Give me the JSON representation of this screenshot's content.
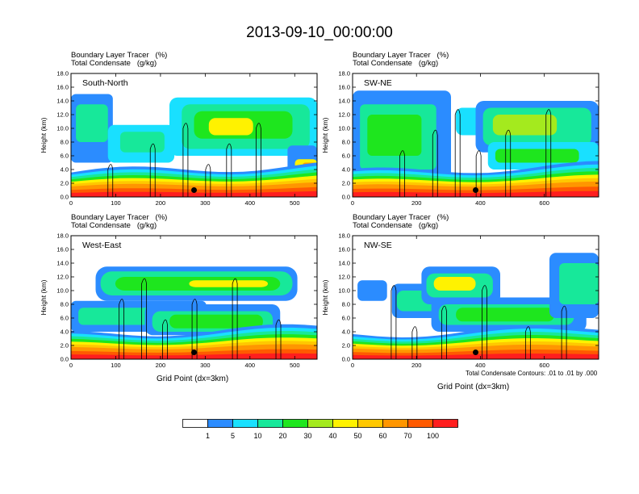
{
  "title": "2013-09-10_00:00:00",
  "panel_titles": {
    "line1": "Boundary Layer Tracer   (%)",
    "line2": "Total Condensate   (g/kg)"
  },
  "ylabel": "Height (km)",
  "xlabel": "Grid Point (dx=3km)",
  "contour_note": "Total Condensate Contours: .01 to .01 by .000",
  "colorbar": {
    "colors": [
      "#ffffff",
      "#2b8cff",
      "#19e0ff",
      "#17e89a",
      "#1ee61e",
      "#a4ea1e",
      "#fff200",
      "#ffc800",
      "#ff9600",
      "#ff5a00",
      "#ff1e1e"
    ],
    "labels": [
      "1",
      "5",
      "10",
      "20",
      "30",
      "40",
      "50",
      "60",
      "70",
      "100"
    ]
  },
  "chart_data": [
    {
      "type": "heatmap",
      "panel_label": "South-North",
      "xlim": [
        0,
        550
      ],
      "ylim": [
        0,
        18
      ],
      "xticks": [
        0,
        100,
        200,
        300,
        400,
        500
      ],
      "yticks": [
        "0.0",
        "2.0",
        "4.0",
        "6.0",
        "8.0",
        "10.0",
        "12.0",
        "14.0",
        "16.0",
        "18.0"
      ],
      "marker_x": 275
    },
    {
      "type": "heatmap",
      "panel_label": "SW-NE",
      "xlim": [
        0,
        770
      ],
      "ylim": [
        0,
        18
      ],
      "xticks": [
        0,
        200,
        400,
        600
      ],
      "yticks": [
        "0.0",
        "2.0",
        "4.0",
        "6.0",
        "8.0",
        "10.0",
        "12.0",
        "14.0",
        "16.0",
        "18.0"
      ],
      "marker_x": 385
    },
    {
      "type": "heatmap",
      "panel_label": "West-East",
      "xlim": [
        0,
        550
      ],
      "ylim": [
        0,
        18
      ],
      "xticks": [
        0,
        100,
        200,
        300,
        400,
        500
      ],
      "yticks": [
        "0.0",
        "2.0",
        "4.0",
        "6.0",
        "8.0",
        "10.0",
        "12.0",
        "14.0",
        "16.0",
        "18.0"
      ],
      "marker_x": 275
    },
    {
      "type": "heatmap",
      "panel_label": "NW-SE",
      "xlim": [
        0,
        770
      ],
      "ylim": [
        0,
        18
      ],
      "xticks": [
        0,
        200,
        400,
        600
      ],
      "yticks": [
        "0.0",
        "2.0",
        "4.0",
        "6.0",
        "8.0",
        "10.0",
        "12.0",
        "14.0",
        "16.0",
        "18.0"
      ],
      "marker_x": 385
    }
  ]
}
